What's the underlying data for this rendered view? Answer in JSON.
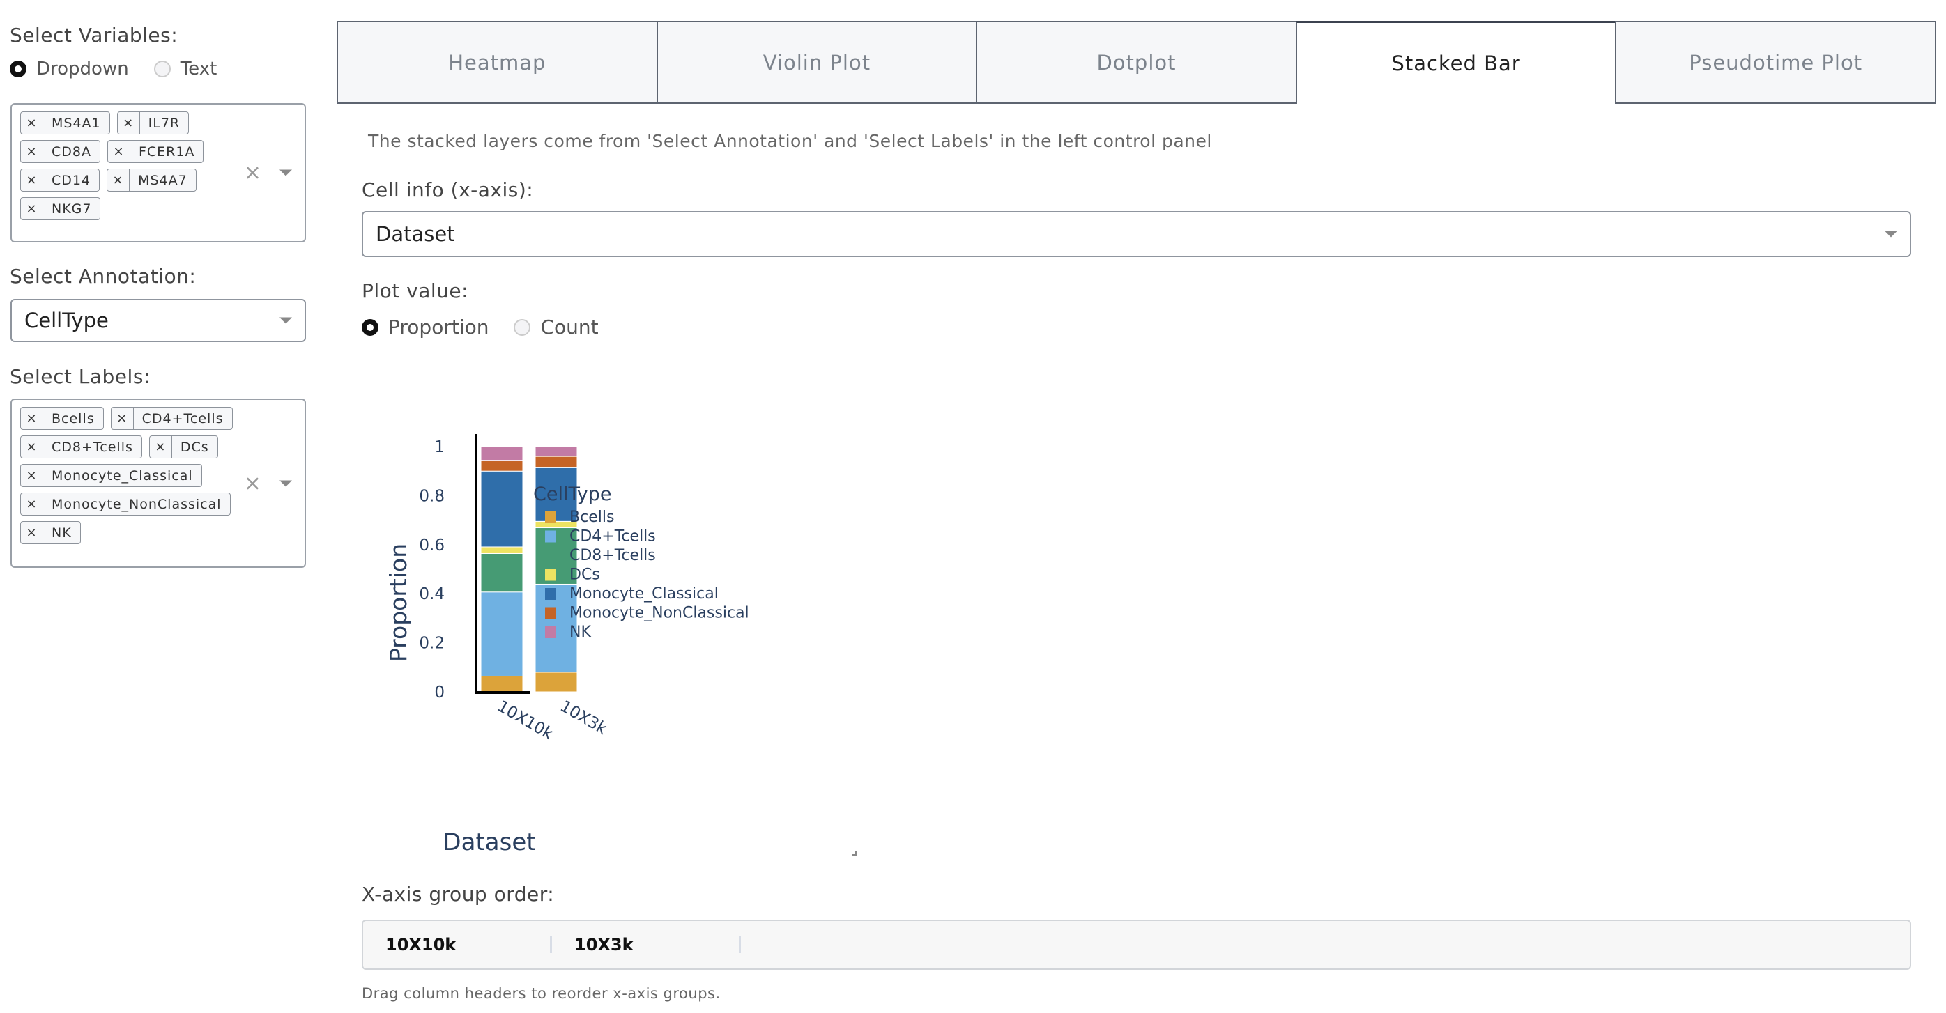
{
  "sidebar": {
    "variables_label": "Select Variables:",
    "mode_options": [
      "Dropdown",
      "Text"
    ],
    "mode_selected": "Dropdown",
    "variables": [
      "MS4A1",
      "IL7R",
      "CD8A",
      "FCER1A",
      "CD14",
      "MS4A7",
      "NKG7"
    ],
    "annotation_label": "Select Annotation:",
    "annotation_value": "CellType",
    "labels_label": "Select Labels:",
    "labels": [
      "Bcells",
      "CD4+Tcells",
      "CD8+Tcells",
      "DCs",
      "Monocyte_Classical",
      "Monocyte_NonClassical",
      "NK"
    ],
    "tag_remove": "×",
    "clear": "×"
  },
  "tabs": [
    "Heatmap",
    "Violin Plot",
    "Dotplot",
    "Stacked Bar",
    "Pseudotime Plot"
  ],
  "active_tab": "Stacked Bar",
  "main": {
    "description": "The stacked layers come from 'Select Annotation' and 'Select Labels' in the left control panel",
    "cell_info_label": "Cell info (x-axis):",
    "cell_info_value": "Dataset",
    "plot_value_label": "Plot value:",
    "plot_value_options": [
      "Proportion",
      "Count"
    ],
    "plot_value_selected": "Proportion",
    "order_label": "X-axis group order:",
    "order_groups": [
      "10X10k",
      "10X3k"
    ],
    "order_hint": "Drag column headers to reorder x-axis groups."
  },
  "chart_data": {
    "type": "bar",
    "stacked": true,
    "categories": [
      "10X10k",
      "10X3k"
    ],
    "xlabel": "Dataset",
    "ylabel": "Proportion",
    "ylim": [
      0,
      1
    ],
    "yticks": [
      "0",
      "0.2",
      "0.4",
      "0.6",
      "0.8",
      "1"
    ],
    "legend_title": "CellType",
    "legend_position": "right",
    "series": [
      {
        "name": "Bcells",
        "color": "#dca33a",
        "values": [
          0.064,
          0.08
        ]
      },
      {
        "name": "CD4+Tcells",
        "color": "#6fb1e2",
        "values": [
          0.343,
          0.359
        ]
      },
      {
        "name": "CD8+Tcells",
        "color": "#469b74",
        "values": [
          0.157,
          0.23
        ]
      },
      {
        "name": "DCs",
        "color": "#ede362",
        "values": [
          0.027,
          0.026
        ]
      },
      {
        "name": "Monocyte_Classical",
        "color": "#2f6eaa",
        "values": [
          0.309,
          0.219
        ]
      },
      {
        "name": "Monocyte_NonClassical",
        "color": "#c56426",
        "values": [
          0.044,
          0.046
        ]
      },
      {
        "name": "NK",
        "color": "#c27ba5",
        "values": [
          0.056,
          0.04
        ]
      }
    ]
  }
}
